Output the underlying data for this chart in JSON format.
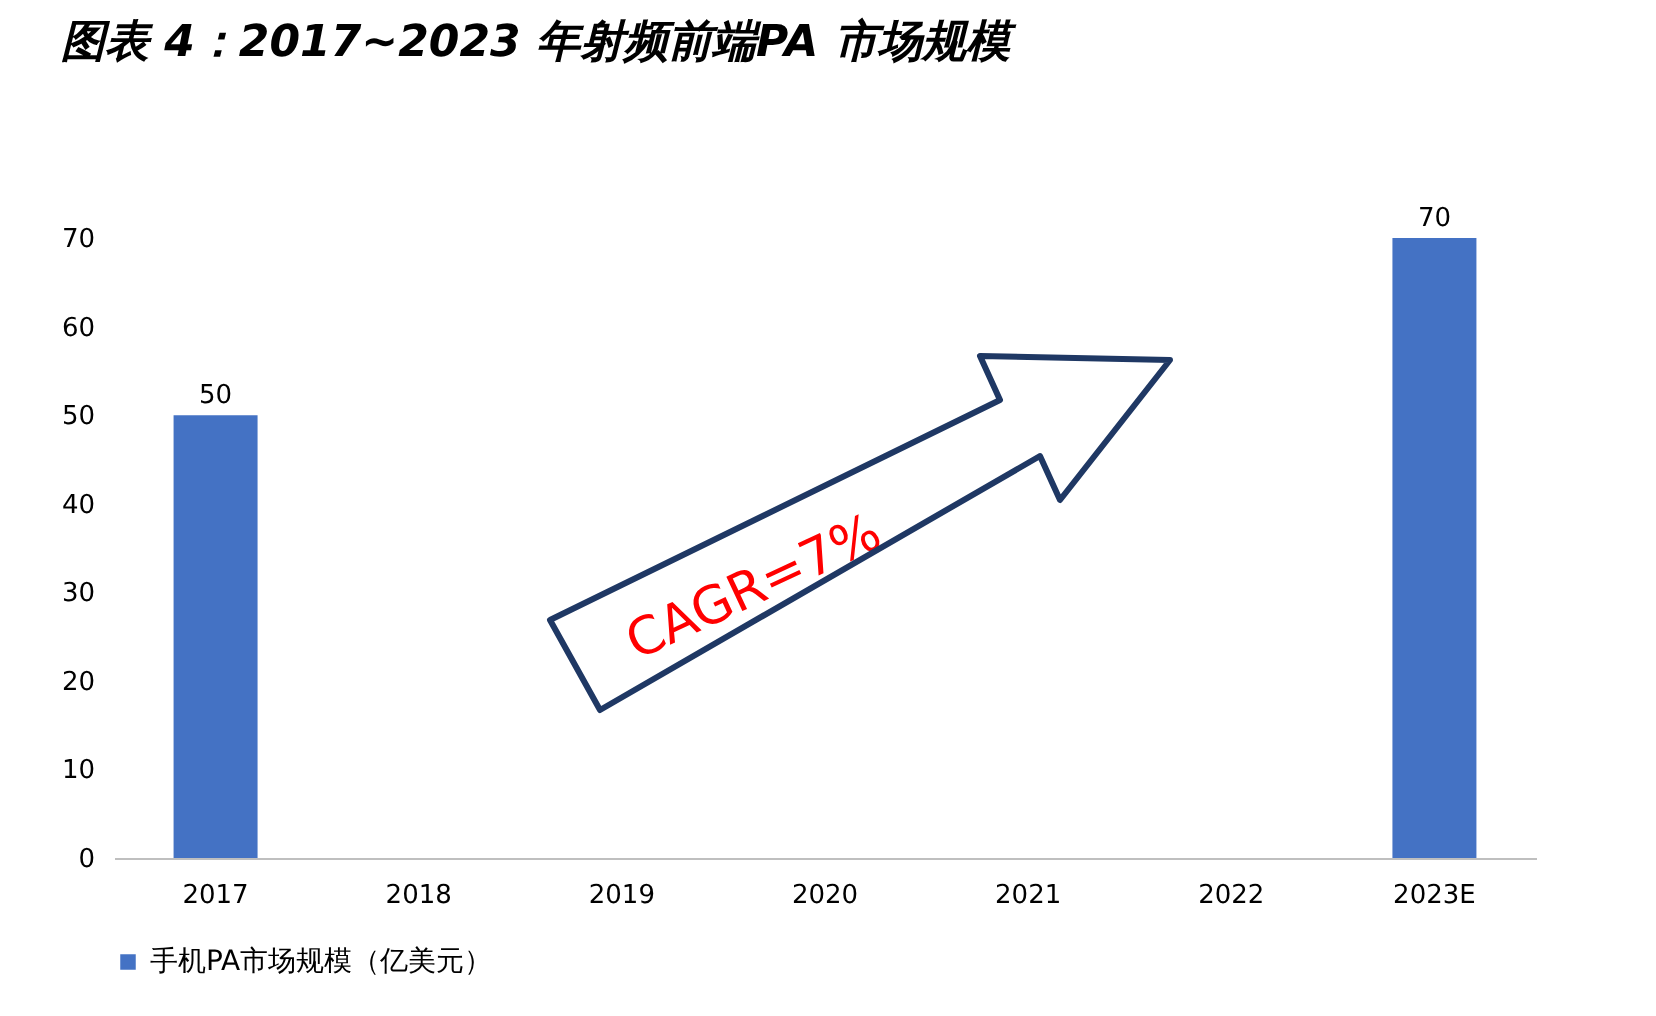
{
  "chart_data": {
    "type": "bar",
    "title": "图表 4：2017~2023 年射频前端PA 市场规模",
    "categories": [
      "2017",
      "2018",
      "2019",
      "2020",
      "2021",
      "2022",
      "2023E"
    ],
    "series": [
      {
        "name": "手机PA市场规模（亿美元）",
        "color": "#4472c4",
        "values": [
          50,
          null,
          null,
          null,
          null,
          null,
          70
        ]
      }
    ],
    "ylim": [
      0,
      70
    ],
    "yticks": [
      0,
      10,
      20,
      30,
      40,
      50,
      60,
      70
    ],
    "grid": false,
    "legend": "bottom",
    "data_labels": true,
    "annotations": [
      "CAGR=7%"
    ]
  }
}
